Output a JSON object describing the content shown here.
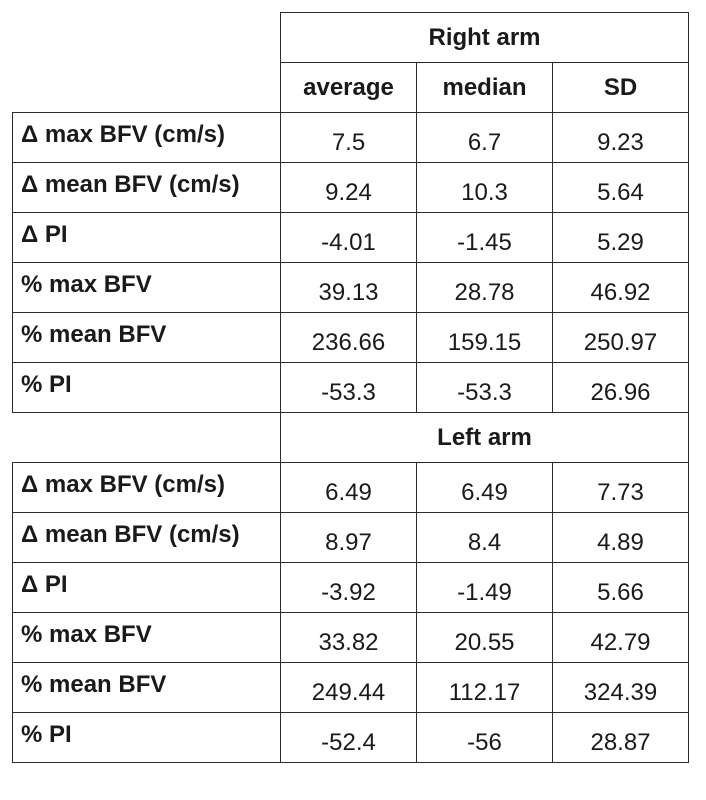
{
  "sections": [
    {
      "title": "Right arm",
      "columns": [
        "average",
        "median",
        "SD"
      ],
      "rows": [
        {
          "label": "Δ max BFV (cm/s)",
          "values": [
            "7.5",
            "6.7",
            "9.23"
          ]
        },
        {
          "label": "Δ mean BFV (cm/s)",
          "values": [
            "9.24",
            "10.3",
            "5.64"
          ]
        },
        {
          "label": "Δ PI",
          "values": [
            "-4.01",
            "-1.45",
            "5.29"
          ]
        },
        {
          "label": "% max BFV",
          "values": [
            "39.13",
            "28.78",
            "46.92"
          ]
        },
        {
          "label": "% mean BFV",
          "values": [
            "236.66",
            "159.15",
            "250.97"
          ]
        },
        {
          "label": "% PI",
          "values": [
            "-53.3",
            "-53.3",
            "26.96"
          ]
        }
      ]
    },
    {
      "title": "Left arm",
      "rows": [
        {
          "label": "Δ max BFV (cm/s)",
          "values": [
            "6.49",
            "6.49",
            "7.73"
          ]
        },
        {
          "label": "Δ mean BFV (cm/s)",
          "values": [
            "8.97",
            "8.4",
            "4.89"
          ]
        },
        {
          "label": "Δ PI",
          "values": [
            "-3.92",
            "-1.49",
            "5.66"
          ]
        },
        {
          "label": "% max BFV",
          "values": [
            "33.82",
            "20.55",
            "42.79"
          ]
        },
        {
          "label": "% mean BFV",
          "values": [
            "249.44",
            "112.17",
            "324.39"
          ]
        },
        {
          "label": "% PI",
          "values": [
            "-52.4",
            "-56",
            "28.87"
          ]
        }
      ]
    }
  ]
}
